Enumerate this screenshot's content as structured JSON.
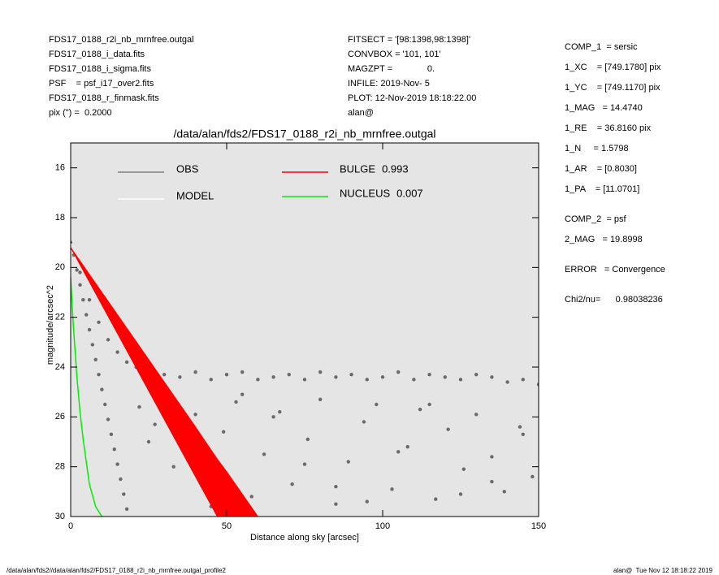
{
  "header": {
    "left": [
      "FDS17_0188_r2i_nb_mrnfree.outgal",
      "FDS17_0188_i_data.fits",
      "FDS17_0188_i_sigma.fits",
      "PSF    = psf_i17_over2.fits",
      "FDS17_0188_r_finmask.fits",
      "pix (\") =  0.2000"
    ],
    "middle": [
      "FITSECT = '[98:1398,98:1398]'",
      "CONVBOX = '101, 101'",
      "MAGZPT =              0.",
      "INFILE: 2019-Nov- 5",
      "PLOT: 12-Nov-2019 18:18:22.00",
      "alan@"
    ],
    "right": [
      "COMP_1  = sersic",
      "1_XC    = [749.1780] pix",
      "1_YC    = [749.1170] pix",
      "1_MAG   = 14.4740",
      "1_RE    = 36.8160 pix",
      "1_N     = 1.5798",
      "1_AR    = [0.8030]",
      "1_PA    = [11.0701]",
      "COMP_2  = psf",
      "2_MAG   = 19.8998",
      "ERROR   = Convergence",
      "Chi2/nu=      0.98038236"
    ]
  },
  "footer": {
    "left": "/data/alan/fds2//data/alan/fds2/FDS17_0188_r2i_nb_mrnfree.outgal_profile2",
    "right": "alan@  Tue Nov 12 18:18:22 2019"
  },
  "chart_data": {
    "type": "scatter",
    "title": "/data/alan/fds2/FDS17_0188_r2i_nb_mrnfree.outgal",
    "x_label": "Distance along sky [arcsec]",
    "y_label": "magnitude/arcsec^2",
    "xlim": [
      0,
      150
    ],
    "ylim": [
      30,
      15
    ],
    "xticks": [
      0,
      50,
      100,
      150
    ],
    "yticks": [
      16,
      18,
      20,
      22,
      24,
      26,
      28,
      30
    ],
    "background": "#e5e5e5",
    "series": [
      {
        "name": "OBS",
        "color": "#6a6a6a",
        "x": [
          0,
          1,
          2,
          3,
          4,
          5,
          6,
          7,
          8,
          9,
          10,
          11,
          12,
          13,
          14,
          15,
          16,
          17,
          18,
          3,
          6,
          9,
          12,
          15,
          18,
          21,
          25,
          30,
          35,
          40,
          45,
          50,
          55,
          60,
          65,
          70,
          75,
          80,
          85,
          90,
          95,
          100,
          105,
          110,
          115,
          120,
          125,
          130,
          135,
          140,
          145,
          150,
          22,
          27,
          31,
          36,
          40,
          44,
          49,
          53,
          58,
          62,
          67,
          71,
          76,
          80,
          85,
          89,
          94,
          98,
          103,
          108,
          112,
          117,
          121,
          126,
          130,
          135,
          139,
          144,
          148,
          25,
          45,
          65,
          85,
          105,
          125,
          145,
          33,
          55,
          75,
          95,
          115,
          135
        ],
        "values": [
          19.0,
          19.5,
          20.1,
          20.7,
          21.3,
          21.9,
          22.5,
          23.1,
          23.7,
          24.3,
          24.9,
          25.5,
          26.1,
          26.7,
          27.3,
          27.9,
          28.5,
          29.1,
          29.7,
          20.2,
          21.3,
          22.2,
          22.9,
          23.4,
          23.8,
          24.0,
          24.2,
          24.3,
          24.4,
          24.2,
          24.5,
          24.3,
          24.2,
          24.5,
          24.4,
          24.3,
          24.5,
          24.2,
          24.4,
          24.3,
          24.5,
          24.4,
          24.2,
          24.5,
          24.3,
          24.4,
          24.5,
          24.3,
          24.4,
          24.6,
          24.5,
          24.7,
          25.6,
          26.3,
          25.2,
          27.1,
          25.9,
          28.3,
          26.6,
          25.4,
          29.2,
          27.5,
          25.8,
          28.7,
          26.9,
          25.3,
          29.5,
          27.8,
          26.2,
          25.5,
          28.9,
          27.2,
          25.7,
          29.3,
          26.5,
          28.1,
          25.9,
          27.6,
          29.0,
          26.4,
          28.4,
          27.0,
          29.6,
          26.0,
          28.8,
          27.4,
          29.1,
          26.7,
          28.0,
          25.1,
          27.9,
          29.4,
          25.5,
          28.6
        ],
        "kind": "points"
      },
      {
        "name": "MODEL",
        "color": "#ffffff",
        "x": [
          0,
          2,
          4,
          6,
          8,
          10,
          12,
          14,
          16,
          18,
          20,
          22
        ],
        "values": [
          19.1,
          19.6,
          20.1,
          20.5,
          20.9,
          21.3,
          21.7,
          22.0,
          22.4,
          22.7,
          23.0,
          23.3
        ],
        "kind": "points",
        "fraction": null
      },
      {
        "name": "BULGE",
        "color": "#ff0000",
        "fraction": 0.993,
        "x": [
          0,
          10,
          20,
          30,
          40,
          47,
          50,
          60
        ],
        "values": [
          19.2,
          21.0,
          22.8,
          24.6,
          26.4,
          27.7,
          28.2,
          30
        ],
        "values_low": [
          19.2,
          21.5,
          23.8,
          26.1,
          28.4,
          30,
          null,
          null
        ],
        "kind": "band"
      },
      {
        "name": "NUCLEUS",
        "color": "#00ee00",
        "fraction": 0.007,
        "x": [
          0,
          0.5,
          1,
          2,
          3,
          4,
          6,
          8,
          9,
          10
        ],
        "values": [
          20.4,
          21.6,
          22.6,
          24.4,
          25.8,
          26.9,
          28.7,
          29.6,
          29.8,
          30
        ],
        "kind": "line"
      }
    ]
  }
}
